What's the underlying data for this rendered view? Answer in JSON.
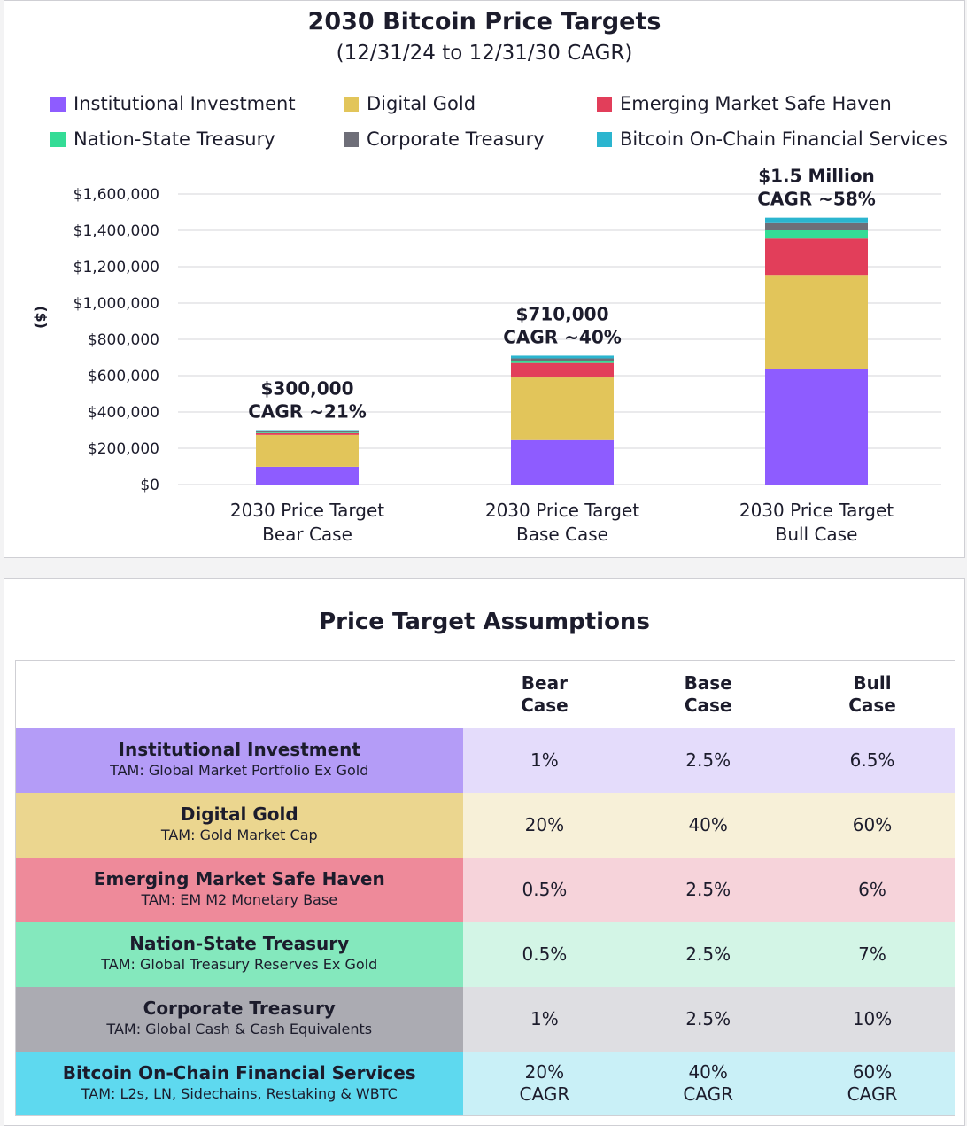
{
  "colors": {
    "institutional": "#8e5cff",
    "digital_gold": "#e2c55a",
    "em_safe_haven": "#e23e5a",
    "nation_state": "#34dc96",
    "corporate": "#6e6e78",
    "onchain": "#2bb5cf"
  },
  "chart_data": {
    "type": "bar",
    "stacked": true,
    "title": "2030 Bitcoin Price Targets",
    "subtitle": "(12/31/24 to 12/31/30 CAGR)",
    "ylabel": "($)",
    "ylim": [
      0,
      1600000
    ],
    "yticks": [
      0,
      200000,
      400000,
      600000,
      800000,
      1000000,
      1200000,
      1400000,
      1600000
    ],
    "ytick_labels": [
      "$0",
      "$200,000",
      "$400,000",
      "$600,000",
      "$800,000",
      "$1,000,000",
      "$1,200,000",
      "$1,400,000",
      "$1,600,000"
    ],
    "grid": true,
    "legend_position": "top",
    "categories": [
      [
        "2030 Price Target",
        "Bear Case"
      ],
      [
        "2030 Price Target",
        "Base Case"
      ],
      [
        "2030 Price Target",
        "Bull Case"
      ]
    ],
    "series": [
      {
        "name": "Institutional Investment",
        "color_key": "institutional",
        "values": [
          98000,
          245000,
          635000
        ]
      },
      {
        "name": "Digital Gold",
        "color_key": "digital_gold",
        "values": [
          176000,
          345000,
          520000
        ]
      },
      {
        "name": "Emerging Market Safe Haven",
        "color_key": "em_safe_haven",
        "values": [
          10000,
          80000,
          200000
        ]
      },
      {
        "name": "Nation-State Treasury",
        "color_key": "nation_state",
        "values": [
          4000,
          12000,
          45000
        ]
      },
      {
        "name": "Corporate Treasury",
        "color_key": "corporate",
        "values": [
          7000,
          13000,
          40000
        ]
      },
      {
        "name": "Bitcoin On-Chain Financial Services",
        "color_key": "onchain",
        "values": [
          5000,
          15000,
          30000
        ]
      }
    ],
    "annotations": [
      {
        "price": "$300,000",
        "cagr": "CAGR ~21%"
      },
      {
        "price": "$710,000",
        "cagr": "CAGR ~40%"
      },
      {
        "price": "$1.5 Million",
        "cagr": "CAGR ~58%"
      }
    ]
  },
  "table": {
    "title": "Price Target Assumptions",
    "headers": [
      [
        "Bear",
        "Case"
      ],
      [
        "Base",
        "Case"
      ],
      [
        "Bull",
        "Case"
      ]
    ],
    "rows": [
      {
        "name": "Institutional Investment",
        "tam": "TAM: Global Market Portfolio Ex Gold",
        "label_bg": "#b49cf7",
        "cell_bg": "#e4dcfb",
        "values": [
          [
            "1%"
          ],
          [
            "2.5%"
          ],
          [
            "6.5%"
          ]
        ]
      },
      {
        "name": "Digital Gold",
        "tam": "TAM: Gold Market Cap",
        "label_bg": "#ebd68f",
        "cell_bg": "#f7f0d8",
        "values": [
          [
            "20%"
          ],
          [
            "40%"
          ],
          [
            "60%"
          ]
        ]
      },
      {
        "name": "Emerging Market Safe Haven",
        "tam": "TAM: EM M2 Monetary Base",
        "label_bg": "#ee8a9a",
        "cell_bg": "#f6d3da",
        "values": [
          [
            "0.5%"
          ],
          [
            "2.5%"
          ],
          [
            "6%"
          ]
        ]
      },
      {
        "name": "Nation-State Treasury",
        "tam": "TAM: Global Treasury Reserves Ex Gold",
        "label_bg": "#84e8bd",
        "cell_bg": "#d3f5e6",
        "values": [
          [
            "0.5%"
          ],
          [
            "2.5%"
          ],
          [
            "7%"
          ]
        ]
      },
      {
        "name": "Corporate Treasury",
        "tam": "TAM: Global Cash & Cash Equivalents",
        "label_bg": "#ababb2",
        "cell_bg": "#dedee2",
        "values": [
          [
            "1%"
          ],
          [
            "2.5%"
          ],
          [
            "10%"
          ]
        ]
      },
      {
        "name": "Bitcoin On-Chain Financial Services",
        "tam": "TAM: L2s, LN, Sidechains, Restaking & WBTC",
        "label_bg": "#5ed9ef",
        "cell_bg": "#c9f0f7",
        "values": [
          [
            "20%",
            "CAGR"
          ],
          [
            "40%",
            "CAGR"
          ],
          [
            "60%",
            "CAGR"
          ]
        ]
      }
    ]
  }
}
